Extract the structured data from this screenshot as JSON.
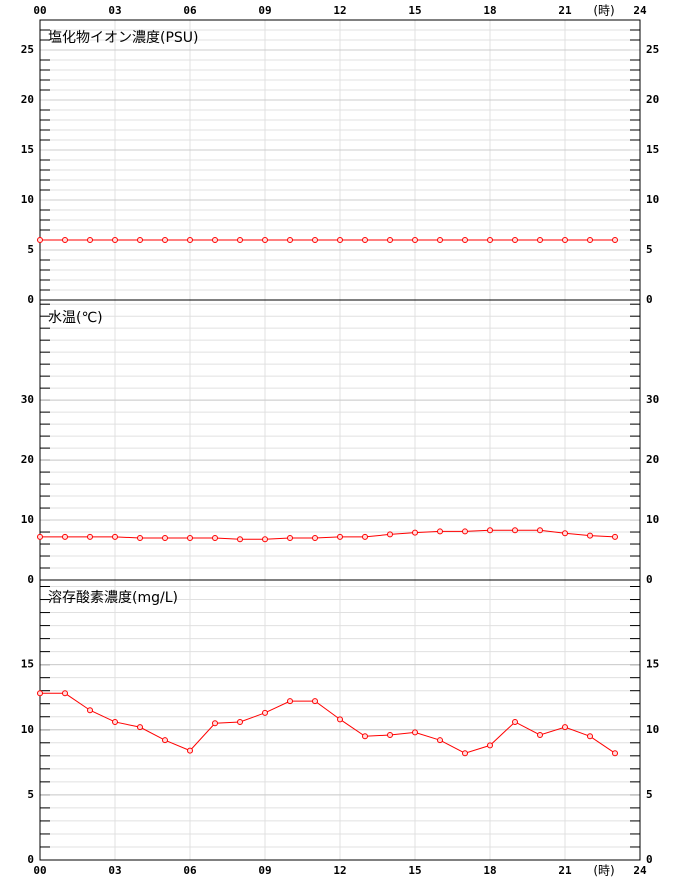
{
  "chart_data": [
    {
      "type": "line",
      "title": "塩化物イオン濃度(PSU)",
      "x": [
        0,
        1,
        2,
        3,
        4,
        5,
        6,
        7,
        8,
        9,
        10,
        11,
        12,
        13,
        14,
        15,
        16,
        17,
        18,
        19,
        20,
        21,
        22,
        23
      ],
      "series": [
        {
          "color": "#ff0000",
          "values": [
            6,
            6,
            6,
            6,
            6,
            6,
            6,
            6,
            6,
            6,
            6,
            6,
            6,
            6,
            6,
            6,
            6,
            6,
            6,
            6,
            6,
            6,
            6,
            6
          ]
        }
      ],
      "xlim": [
        0,
        24
      ],
      "xticks": [
        {
          "value": 0,
          "label": "00"
        },
        {
          "value": 3,
          "label": "03"
        },
        {
          "value": 6,
          "label": "06"
        },
        {
          "value": 9,
          "label": "09"
        },
        12,
        15,
        18,
        21,
        24
      ],
      "x_unit": "(時)",
      "ylim": [
        0,
        28
      ],
      "yticks": [
        0,
        5,
        10,
        15,
        20,
        25
      ],
      "minor_ystep": 1,
      "grid": true
    },
    {
      "type": "line",
      "title": "水温(℃)",
      "x": [
        0,
        1,
        2,
        3,
        4,
        5,
        6,
        7,
        8,
        9,
        10,
        11,
        12,
        13,
        14,
        15,
        16,
        17,
        18,
        19,
        20,
        21,
        22,
        23
      ],
      "series": [
        {
          "color": "#ff0000",
          "values": [
            7.2,
            7.2,
            7.2,
            7.2,
            7.0,
            7.0,
            7.0,
            7.0,
            6.8,
            6.8,
            7.0,
            7.0,
            7.2,
            7.2,
            7.6,
            7.9,
            8.1,
            8.1,
            8.3,
            8.3,
            8.3,
            7.8,
            7.4,
            7.2
          ]
        }
      ],
      "xlim": [
        0,
        24
      ],
      "ylim": [
        0,
        46.7
      ],
      "yticks": [
        0,
        10,
        20,
        30
      ],
      "minor_ystep": 2,
      "grid": true
    },
    {
      "type": "line",
      "title": "溶存酸素濃度(mg/L)",
      "x": [
        0,
        1,
        2,
        3,
        4,
        5,
        6,
        7,
        8,
        9,
        10,
        11,
        12,
        13,
        14,
        15,
        16,
        17,
        18,
        19,
        20,
        21,
        22,
        23
      ],
      "series": [
        {
          "color": "#ff0000",
          "values": [
            12.8,
            12.8,
            11.5,
            10.6,
            10.2,
            9.2,
            8.4,
            10.5,
            10.6,
            11.3,
            12.2,
            12.2,
            10.8,
            9.5,
            9.6,
            9.8,
            9.2,
            8.2,
            8.8,
            10.6,
            9.6,
            10.2,
            9.5,
            8.2
          ]
        }
      ],
      "xlim": [
        0,
        24
      ],
      "xticks": [
        {
          "value": 0,
          "label": "00"
        },
        {
          "value": 3,
          "label": "03"
        },
        {
          "value": 6,
          "label": "06"
        },
        {
          "value": 9,
          "label": "09"
        },
        12,
        15,
        18,
        21,
        24
      ],
      "x_unit": "(時)",
      "ylim": [
        0,
        21.5
      ],
      "yticks": [
        0,
        5,
        10,
        15
      ],
      "minor_ystep": 1,
      "grid": true
    }
  ]
}
